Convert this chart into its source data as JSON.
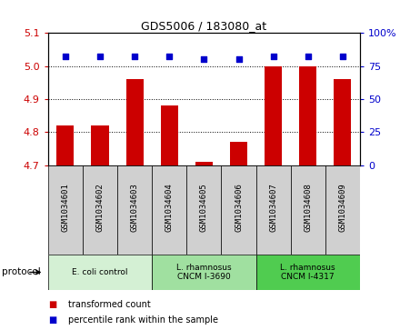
{
  "title": "GDS5006 / 183080_at",
  "samples": [
    "GSM1034601",
    "GSM1034602",
    "GSM1034603",
    "GSM1034604",
    "GSM1034605",
    "GSM1034606",
    "GSM1034607",
    "GSM1034608",
    "GSM1034609"
  ],
  "transformed_counts": [
    4.82,
    4.82,
    4.96,
    4.88,
    4.71,
    4.77,
    5.0,
    5.0,
    4.96
  ],
  "percentile_ranks": [
    82,
    82,
    82,
    82,
    80,
    80,
    82,
    82,
    82
  ],
  "ylim_left": [
    4.7,
    5.1
  ],
  "ylim_right": [
    0,
    100
  ],
  "yticks_left": [
    4.7,
    4.8,
    4.9,
    5.0,
    5.1
  ],
  "yticks_right": [
    0,
    25,
    50,
    75,
    100
  ],
  "groups": [
    {
      "label": "E. coli control",
      "start": 0,
      "end": 3,
      "color": "#d4f0d4"
    },
    {
      "label": "L. rhamnosus\nCNCM I-3690",
      "start": 3,
      "end": 6,
      "color": "#a0e0a0"
    },
    {
      "label": "L. rhamnosus\nCNCM I-4317",
      "start": 6,
      "end": 9,
      "color": "#50cc50"
    }
  ],
  "bar_color": "#cc0000",
  "dot_color": "#0000cc",
  "bar_width": 0.5,
  "legend_items": [
    {
      "color": "#cc0000",
      "label": "transformed count"
    },
    {
      "color": "#0000cc",
      "label": "percentile rank within the sample"
    }
  ],
  "protocol_label": "protocol",
  "background_color": "#ffffff",
  "box_color": "#d0d0d0",
  "grid_yticks": [
    4.8,
    4.9,
    5.0
  ]
}
